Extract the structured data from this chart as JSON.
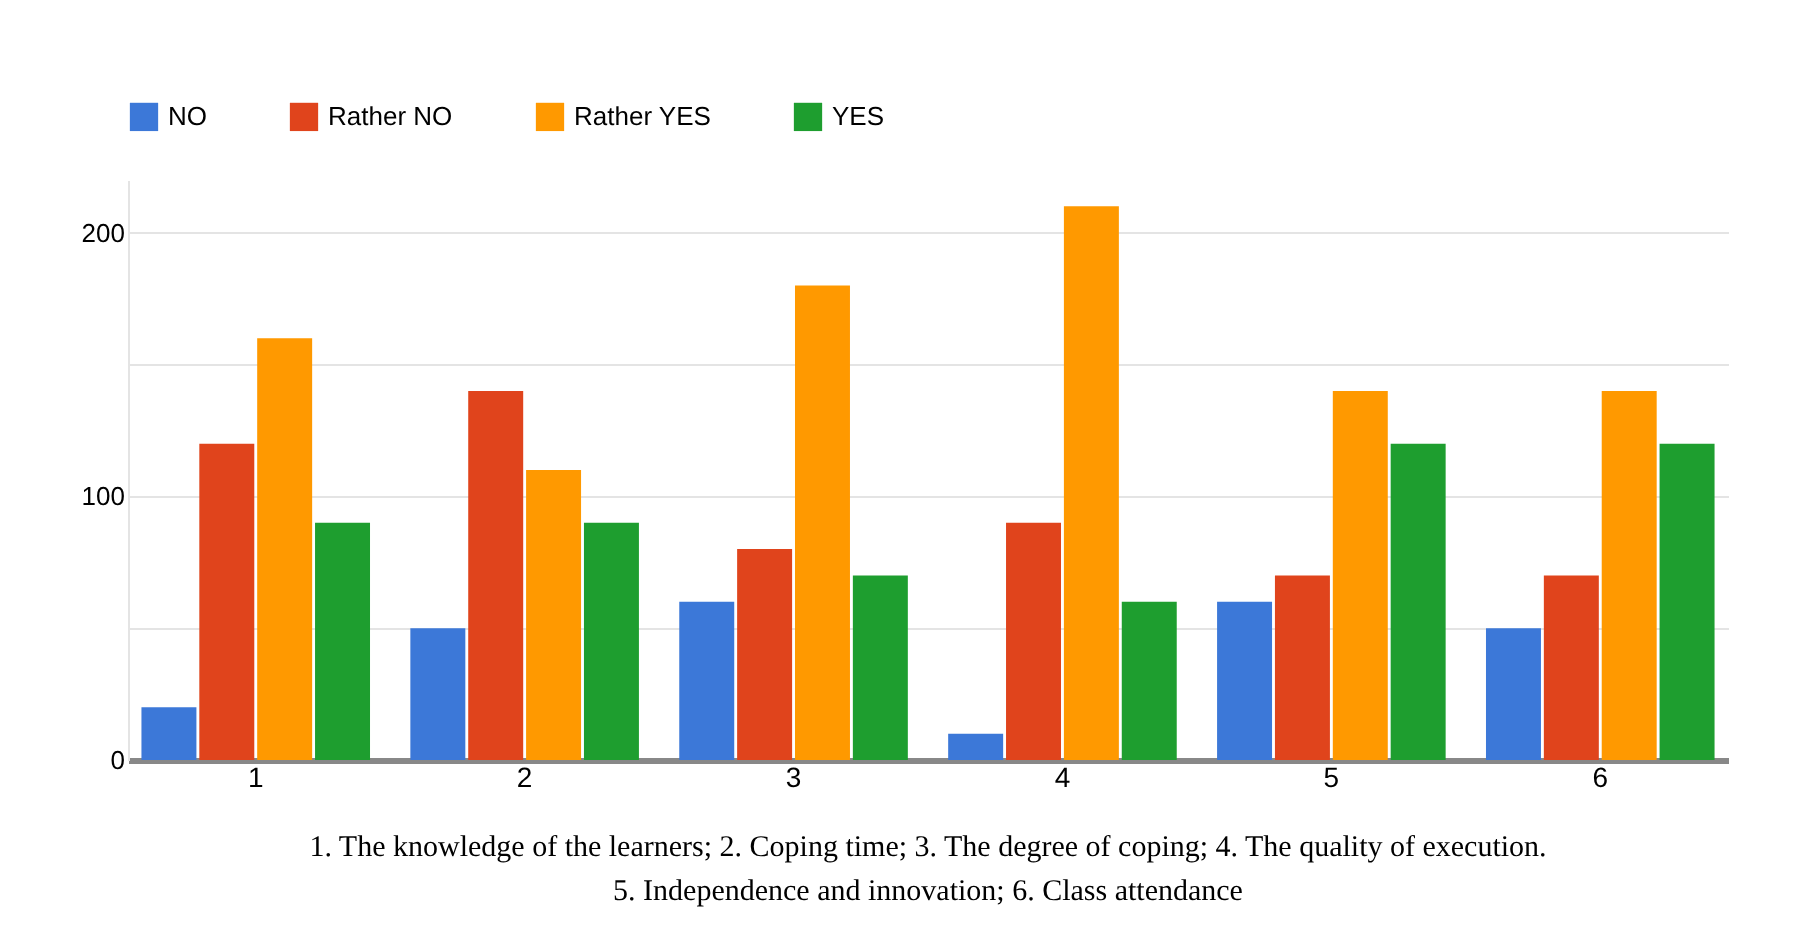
{
  "chart_data": {
    "type": "bar",
    "categories": [
      "1",
      "2",
      "3",
      "4",
      "5",
      "6"
    ],
    "series": [
      {
        "name": "NO",
        "color": "#3c78d8",
        "values": [
          20,
          50,
          60,
          10,
          60,
          50
        ]
      },
      {
        "name": "Rather NO",
        "color": "#e0441c",
        "values": [
          120,
          140,
          80,
          90,
          70,
          70
        ]
      },
      {
        "name": "Rather YES",
        "color": "#ff9900",
        "values": [
          160,
          110,
          180,
          210,
          140,
          140
        ]
      },
      {
        "name": "YES",
        "color": "#1e9e2f",
        "values": [
          90,
          90,
          70,
          60,
          120,
          120
        ]
      }
    ],
    "ylim": [
      0,
      220
    ],
    "yticks": [
      0,
      {
        "value": 50,
        "label": null
      },
      100,
      {
        "value": 150,
        "label": null
      },
      200
    ],
    "grid": "y",
    "legend": "top left",
    "annotations": [
      "1. The knowledge of the learners; 2. Coping time; 3. The degree of coping; 4. The quality of execution.",
      "5. Independence and innovation; 6. Class attendance"
    ]
  }
}
